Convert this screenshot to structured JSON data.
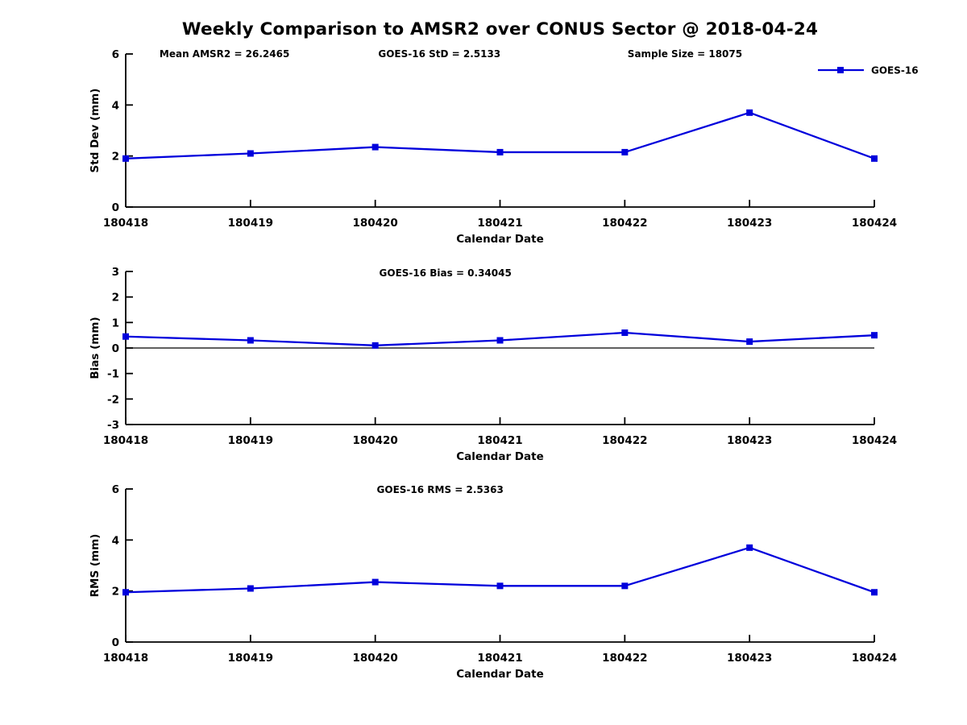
{
  "title": "Weekly Comparison to AMSR2 over CONUS Sector @ 2018-04-24",
  "colors": {
    "line": "#0000DC",
    "axis": "#000000",
    "text": "#000000",
    "background": "#ffffff"
  },
  "chart_data": [
    {
      "type": "line",
      "name": "std-dev",
      "categories": [
        "180418",
        "180419",
        "180420",
        "180421",
        "180422",
        "180423",
        "180424"
      ],
      "series": [
        {
          "name": "GOES-16",
          "values": [
            1.9,
            2.1,
            2.35,
            2.15,
            2.15,
            3.7,
            1.9
          ]
        }
      ],
      "xlabel": "Calendar Date",
      "ylabel": "Std Dev (mm)",
      "ylim": [
        0,
        6
      ],
      "yticks": [
        0,
        2,
        4,
        6
      ],
      "grid": false,
      "zero_line": false,
      "show_legend": true,
      "legend_position": "top-right-outside",
      "annotations": [
        {
          "text": "Mean AMSR2 = 26.2465",
          "xfrac": 0.132
        },
        {
          "text": "GOES-16 StD = 2.5133",
          "xfrac": 0.419
        },
        {
          "text": "Sample Size = 18075",
          "xfrac": 0.747
        }
      ]
    },
    {
      "type": "line",
      "name": "bias",
      "categories": [
        "180418",
        "180419",
        "180420",
        "180421",
        "180422",
        "180423",
        "180424"
      ],
      "series": [
        {
          "name": "GOES-16",
          "values": [
            0.45,
            0.3,
            0.1,
            0.3,
            0.6,
            0.25,
            0.5
          ]
        }
      ],
      "xlabel": "Calendar Date",
      "ylabel": "Bias (mm)",
      "ylim": [
        -3,
        3
      ],
      "yticks": [
        -3,
        -2,
        -1,
        0,
        1,
        2,
        3
      ],
      "grid": false,
      "zero_line": true,
      "show_legend": false,
      "annotations": [
        {
          "text": "GOES-16 Bias  = 0.34045",
          "xfrac": 0.427
        }
      ]
    },
    {
      "type": "line",
      "name": "rms",
      "categories": [
        "180418",
        "180419",
        "180420",
        "180421",
        "180422",
        "180423",
        "180424"
      ],
      "series": [
        {
          "name": "GOES-16",
          "values": [
            1.95,
            2.1,
            2.35,
            2.2,
            2.2,
            3.7,
            1.95
          ]
        }
      ],
      "xlabel": "Calendar Date",
      "ylabel": "RMS (mm)",
      "ylim": [
        0,
        6
      ],
      "yticks": [
        0,
        2,
        4,
        6
      ],
      "grid": false,
      "zero_line": false,
      "show_legend": false,
      "annotations": [
        {
          "text": "GOES-16 RMS = 2.5363",
          "xfrac": 0.42
        }
      ]
    }
  ]
}
